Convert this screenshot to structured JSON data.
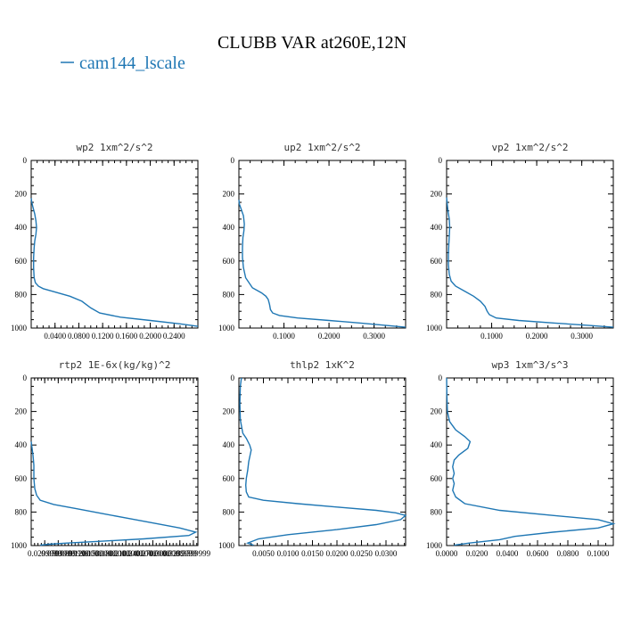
{
  "figure": {
    "title": "CLUBB VAR at260E,12N",
    "legend_label": "cam144_lscale",
    "legend_color": "#1f77b4"
  },
  "chart_data": [
    {
      "type": "line",
      "title": "wp2  1xm^2/s^2",
      "xlim": [
        0,
        0.28
      ],
      "ylim": [
        1000,
        0
      ],
      "xticks": [
        0.04,
        0.08,
        0.12,
        0.16,
        0.2,
        0.24
      ],
      "xtick_labels": [
        "0.0400",
        "0.0800",
        "0.1200",
        "0.1600",
        "0.2000",
        "0.2400"
      ],
      "yticks": [
        0,
        200,
        400,
        600,
        800,
        1000
      ],
      "ytick_labels": [
        "0",
        "200",
        "400",
        "600",
        "800",
        "1000"
      ],
      "series": [
        {
          "x": [
            0,
            0.001,
            0.003,
            0.006,
            0.008,
            0.009,
            0.008,
            0.006,
            0.005,
            0.004,
            0.004,
            0.005,
            0.007,
            0.012,
            0.02,
            0.04,
            0.065,
            0.085,
            0.1,
            0.115,
            0.15,
            0.2,
            0.25,
            0.28
          ],
          "y": [
            225,
            250,
            280,
            320,
            360,
            400,
            440,
            480,
            520,
            580,
            640,
            700,
            730,
            750,
            765,
            785,
            810,
            840,
            880,
            910,
            935,
            955,
            975,
            990
          ]
        }
      ]
    },
    {
      "type": "line",
      "title": "up2  1xm^2/s^2",
      "xlim": [
        0,
        0.37
      ],
      "ylim": [
        1000,
        0
      ],
      "xticks": [
        0.1,
        0.2,
        0.3
      ],
      "xtick_labels": [
        "0.1000",
        "0.2000",
        "0.3000"
      ],
      "yticks": [
        0,
        200,
        400,
        600,
        800,
        1000
      ],
      "ytick_labels": [
        "0",
        "200",
        "400",
        "600",
        "800",
        "1000"
      ],
      "series": [
        {
          "x": [
            0,
            0.001,
            0.005,
            0.01,
            0.012,
            0.011,
            0.009,
            0.008,
            0.008,
            0.01,
            0.015,
            0.03,
            0.05,
            0.06,
            0.065,
            0.068,
            0.07,
            0.075,
            0.09,
            0.13,
            0.2,
            0.27,
            0.33,
            0.37
          ],
          "y": [
            235,
            260,
            290,
            330,
            380,
            420,
            460,
            520,
            580,
            640,
            700,
            760,
            790,
            810,
            830,
            860,
            890,
            910,
            925,
            940,
            955,
            970,
            985,
            995
          ]
        }
      ]
    },
    {
      "type": "line",
      "title": "vp2  1xm^2/s^2",
      "xlim": [
        0,
        0.37
      ],
      "ylim": [
        1000,
        0
      ],
      "xticks": [
        0.1,
        0.2,
        0.3
      ],
      "xtick_labels": [
        "0.1000",
        "0.2000",
        "0.3000"
      ],
      "yticks": [
        0,
        200,
        400,
        600,
        800,
        1000
      ],
      "ytick_labels": [
        "0",
        "200",
        "400",
        "600",
        "800",
        "1000"
      ],
      "series": [
        {
          "x": [
            0,
            0.001,
            0.003,
            0.006,
            0.007,
            0.006,
            0.005,
            0.004,
            0.004,
            0.006,
            0.01,
            0.02,
            0.04,
            0.06,
            0.075,
            0.085,
            0.09,
            0.095,
            0.11,
            0.16,
            0.24,
            0.32,
            0.37
          ],
          "y": [
            220,
            250,
            300,
            350,
            400,
            450,
            500,
            560,
            620,
            680,
            720,
            750,
            780,
            810,
            840,
            870,
            900,
            920,
            940,
            955,
            970,
            985,
            995
          ]
        }
      ]
    },
    {
      "type": "line",
      "title": "rtp2  1E-6x(kg/kg)^2",
      "xlim": [
        0,
        0.37
      ],
      "ylim": [
        1000,
        0
      ],
      "xticks": [
        0.03,
        0.06,
        0.09,
        0.12,
        0.15,
        0.18,
        0.21,
        0.24,
        0.27,
        0.3,
        0.33,
        0.36
      ],
      "xtick_labels": [
        "0.0299999",
        "0.0599999",
        "0.0899999",
        "0.1200000",
        "0.1500000",
        "0.1800000",
        "0.2100000",
        "0.2400000",
        "0.2700000",
        "0.3000000",
        "0.3299999",
        "0.3599999"
      ],
      "yticks": [
        0,
        200,
        400,
        600,
        800,
        1000
      ],
      "ytick_labels": [
        "0",
        "200",
        "400",
        "600",
        "800",
        "1000"
      ],
      "series": [
        {
          "x": [
            0,
            0.002,
            0.004,
            0.006,
            0.006,
            0.008,
            0.012,
            0.02,
            0.05,
            0.1,
            0.16,
            0.22,
            0.28,
            0.33,
            0.365,
            0.35,
            0.25,
            0.15,
            0.08,
            0.04,
            0.02
          ],
          "y": [
            380,
            420,
            460,
            520,
            600,
            660,
            700,
            730,
            755,
            780,
            810,
            840,
            870,
            895,
            920,
            940,
            960,
            975,
            985,
            992,
            998
          ]
        }
      ]
    },
    {
      "type": "line",
      "title": "thlp2  1xK^2",
      "xlim": [
        0,
        0.034
      ],
      "ylim": [
        1000,
        0
      ],
      "xticks": [
        0.005,
        0.01,
        0.015,
        0.02,
        0.025,
        0.03
      ],
      "xtick_labels": [
        "0.0050",
        "0.0100",
        "0.0150",
        "0.0200",
        "0.0250",
        "0.0300"
      ],
      "yticks": [
        0,
        200,
        400,
        600,
        800,
        1000
      ],
      "ytick_labels": [
        "0",
        "200",
        "400",
        "600",
        "800",
        "1000"
      ],
      "series": [
        {
          "x": [
            0.0005,
            0.0003,
            0.0002,
            0.0003,
            0.0008,
            0.0015,
            0.0022,
            0.0025,
            0.0023,
            0.002,
            0.0018,
            0.0015,
            0.0014,
            0.0015,
            0.002,
            0.005,
            0.012,
            0.02,
            0.028,
            0.032,
            0.034,
            0.033,
            0.028,
            0.02,
            0.01,
            0.004,
            0.0018,
            0.003
          ],
          "y": [
            0,
            50,
            150,
            250,
            330,
            360,
            400,
            430,
            460,
            500,
            550,
            600,
            640,
            680,
            710,
            730,
            750,
            770,
            790,
            805,
            820,
            845,
            875,
            905,
            935,
            960,
            985,
            998
          ]
        }
      ]
    },
    {
      "type": "line",
      "title": "wp3  1xm^3/s^3",
      "xlim": [
        0,
        0.11
      ],
      "ylim": [
        1000,
        0
      ],
      "xticks": [
        0,
        0.02,
        0.04,
        0.06,
        0.08,
        0.1
      ],
      "xtick_labels": [
        "0.0000",
        "0.0200",
        "0.0400",
        "0.0600",
        "0.0800",
        "0.1000"
      ],
      "yticks": [
        0,
        200,
        400,
        600,
        800,
        1000
      ],
      "ytick_labels": [
        "0",
        "200",
        "400",
        "600",
        "800",
        "1000"
      ],
      "series": [
        {
          "x": [
            0,
            0.0002,
            0.0005,
            0.002,
            0.006,
            0.012,
            0.0155,
            0.014,
            0.008,
            0.005,
            0.004,
            0.005,
            0.004,
            0.005,
            0.004,
            0.006,
            0.012,
            0.035,
            0.07,
            0.1,
            0.11,
            0.1,
            0.07,
            0.045,
            0.035,
            0.015,
            0.005
          ],
          "y": [
            0,
            100,
            200,
            260,
            310,
            350,
            380,
            420,
            460,
            490,
            530,
            570,
            600,
            630,
            670,
            710,
            750,
            790,
            820,
            845,
            870,
            895,
            920,
            945,
            965,
            985,
            998
          ]
        }
      ]
    }
  ]
}
